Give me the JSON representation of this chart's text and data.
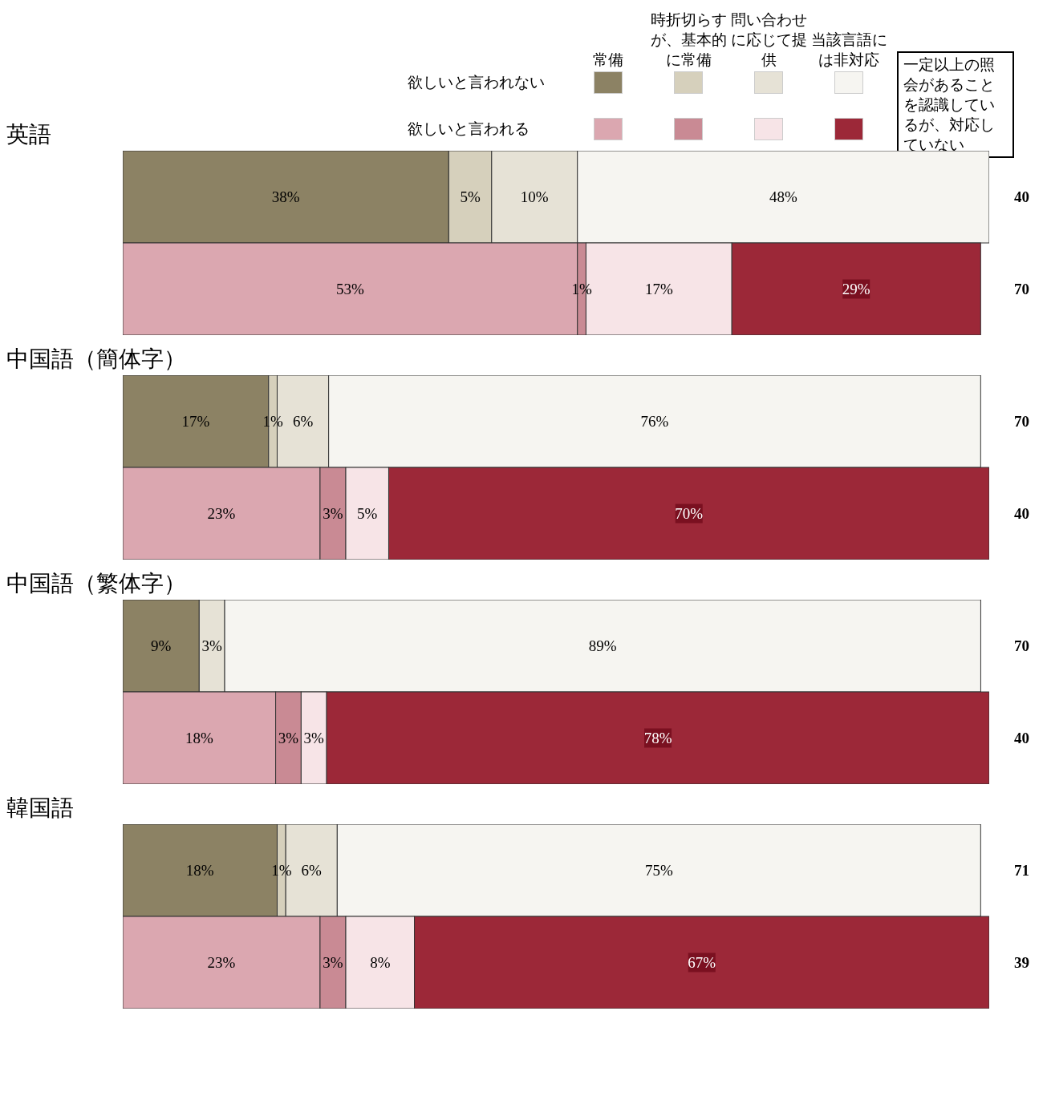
{
  "chart_data": [
    {
      "type": "bar",
      "orientation": "horizontal",
      "stacked": true,
      "title": "英語",
      "categories": [
        null,
        null
      ],
      "annotations": [
        "40",
        "70",
        "欲しいと言われない",
        "欲しいと言われる",
        "一定以上の照会があることを認識しているが、対応していない",
        "常備",
        "時折切らすが、基本的に常備",
        "問い合わせに応じて提供",
        "当該言語には非対応"
      ],
      "series": [
        {
          "color": "#8c8264",
          "values": [
            38,
            null
          ],
          "value_labels": [
            "38%",
            null
          ]
        },
        {
          "color": "#d6d0bc",
          "values": [
            5,
            null
          ],
          "value_labels": [
            "5%",
            null
          ]
        },
        {
          "color": "#e6e2d6",
          "values": [
            10,
            null
          ],
          "value_labels": [
            "10%",
            null
          ]
        },
        {
          "color": "#f6f5f1",
          "values": [
            48,
            null
          ],
          "value_labels": [
            "48%",
            null
          ]
        },
        {
          "color": "#dba7b0",
          "values": [
            null,
            53
          ],
          "value_labels": [
            null,
            "53%"
          ]
        },
        {
          "color": "#c98a94",
          "values": [
            null,
            1
          ],
          "value_labels": [
            null,
            "1%"
          ]
        },
        {
          "color": "#f7e4e7",
          "values": [
            null,
            17
          ],
          "value_labels": [
            null,
            "17%"
          ]
        },
        {
          "color": "#9c2838",
          "values": [
            null,
            29
          ],
          "value_labels": [
            null,
            "29%"
          ]
        }
      ]
    },
    {
      "type": "bar",
      "orientation": "horizontal",
      "stacked": true,
      "title": "中国語（簡体字）",
      "categories": [
        null,
        null
      ],
      "annotations": [
        "70",
        "40"
      ],
      "series": [
        {
          "color": "#8c8264",
          "values": [
            17,
            null
          ],
          "value_labels": [
            "17%",
            null
          ]
        },
        {
          "color": "#d6d0bc",
          "values": [
            1,
            null
          ],
          "value_labels": [
            "1%",
            null
          ]
        },
        {
          "color": "#e6e2d6",
          "values": [
            6,
            null
          ],
          "value_labels": [
            "6%",
            null
          ]
        },
        {
          "color": "#f6f5f1",
          "values": [
            76,
            null
          ],
          "value_labels": [
            "76%",
            null
          ]
        },
        {
          "color": "#dba7b0",
          "values": [
            null,
            23
          ],
          "value_labels": [
            null,
            "23%"
          ]
        },
        {
          "color": "#c98a94",
          "values": [
            null,
            3
          ],
          "value_labels": [
            null,
            "3%"
          ]
        },
        {
          "color": "#f7e4e7",
          "values": [
            null,
            5
          ],
          "value_labels": [
            null,
            "5%"
          ]
        },
        {
          "color": "#9c2838",
          "values": [
            null,
            70
          ],
          "value_labels": [
            null,
            "70%"
          ]
        }
      ]
    },
    {
      "type": "bar",
      "orientation": "horizontal",
      "stacked": true,
      "title": "中国語（繁体字）",
      "categories": [
        null,
        null
      ],
      "annotations": [
        "70",
        "40"
      ],
      "series": [
        {
          "color": "#8c8264",
          "values": [
            9,
            null
          ],
          "value_labels": [
            "9%",
            null
          ]
        },
        {
          "color": "#d6d0bc",
          "values": [
            0,
            null
          ],
          "value_labels": [
            null,
            null
          ]
        },
        {
          "color": "#e6e2d6",
          "values": [
            3,
            null
          ],
          "value_labels": [
            "3%",
            null
          ]
        },
        {
          "color": "#f6f5f1",
          "values": [
            89,
            null
          ],
          "value_labels": [
            "89%",
            null
          ]
        },
        {
          "color": "#dba7b0",
          "values": [
            null,
            18
          ],
          "value_labels": [
            null,
            "18%"
          ]
        },
        {
          "color": "#c98a94",
          "values": [
            null,
            3
          ],
          "value_labels": [
            null,
            "3%"
          ]
        },
        {
          "color": "#f7e4e7",
          "values": [
            null,
            3
          ],
          "value_labels": [
            null,
            "3%"
          ]
        },
        {
          "color": "#9c2838",
          "values": [
            null,
            78
          ],
          "value_labels": [
            null,
            "78%"
          ]
        }
      ]
    },
    {
      "type": "bar",
      "orientation": "horizontal",
      "stacked": true,
      "title": "韓国語",
      "categories": [
        null,
        null
      ],
      "annotations": [
        "71",
        "39"
      ],
      "series": [
        {
          "color": "#8c8264",
          "values": [
            18,
            null
          ],
          "value_labels": [
            "18%",
            null
          ]
        },
        {
          "color": "#d6d0bc",
          "values": [
            1,
            null
          ],
          "value_labels": [
            "1%",
            null
          ]
        },
        {
          "color": "#e6e2d6",
          "values": [
            6,
            null
          ],
          "value_labels": [
            "6%",
            null
          ]
        },
        {
          "color": "#f6f5f1",
          "values": [
            75,
            null
          ],
          "value_labels": [
            "75%",
            null
          ]
        },
        {
          "color": "#dba7b0",
          "values": [
            null,
            23
          ],
          "value_labels": [
            null,
            "23%"
          ]
        },
        {
          "color": "#c98a94",
          "values": [
            null,
            3
          ],
          "value_labels": [
            null,
            "3%"
          ]
        },
        {
          "color": "#f7e4e7",
          "values": [
            null,
            8
          ],
          "value_labels": [
            null,
            "8%"
          ]
        },
        {
          "color": "#9c2838",
          "values": [
            null,
            67
          ],
          "value_labels": [
            null,
            "67%"
          ]
        }
      ]
    }
  ]
}
